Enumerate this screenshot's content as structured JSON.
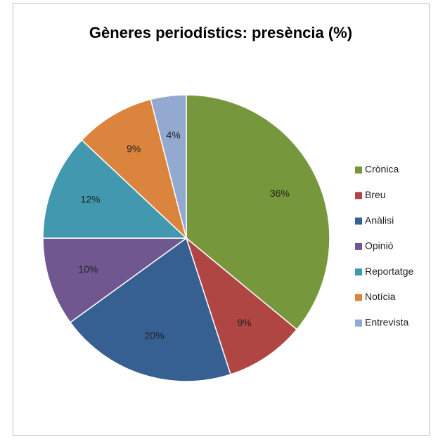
{
  "chart_data": {
    "type": "pie",
    "title": "Gèneres periodístics: presència (%)",
    "categories": [
      "Crònica",
      "Breu",
      "Anàlisi",
      "Opinió",
      "Reportatge",
      "Notícia",
      "Entrevista"
    ],
    "values": [
      36,
      9,
      20,
      10,
      12,
      9,
      4
    ],
    "value_labels": [
      "36%",
      "9%",
      "20%",
      "10%",
      "12%",
      "9%",
      "4%"
    ],
    "colors": [
      "#77973d",
      "#b04643",
      "#366092",
      "#71578f",
      "#4198af",
      "#db843d",
      "#93a9cf"
    ],
    "legend": "right"
  }
}
